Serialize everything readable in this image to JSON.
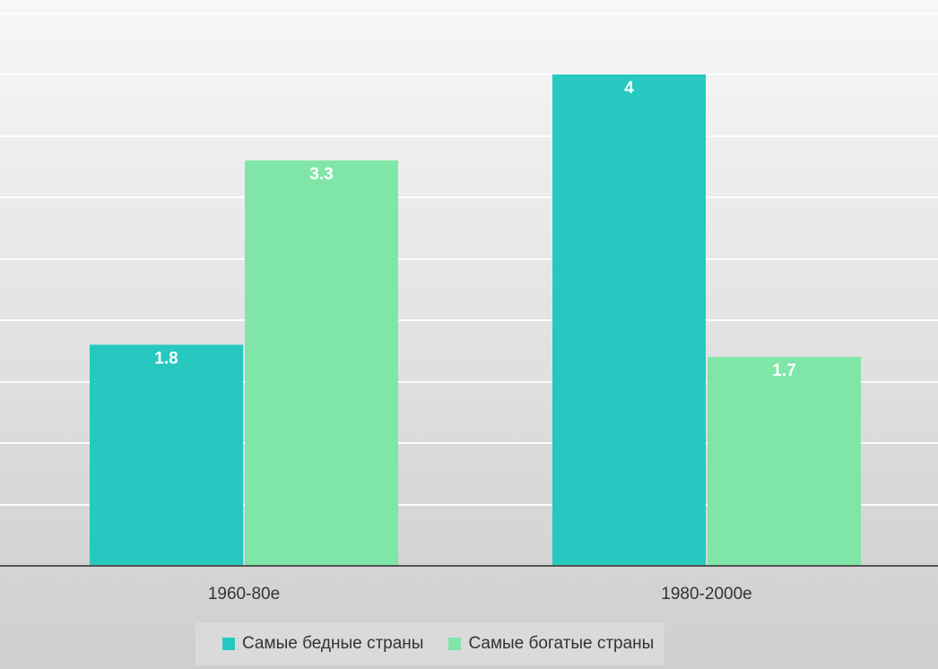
{
  "chart_data": {
    "type": "bar",
    "categories": [
      "1960-80е",
      "1980-2000е"
    ],
    "series": [
      {
        "name": "Самые бедные страны",
        "values": [
          1.8,
          4
        ],
        "labels": [
          "1.8",
          "4"
        ],
        "color": "#26c8c0"
      },
      {
        "name": "Самые богатые страны",
        "values": [
          3.3,
          1.7
        ],
        "labels": [
          "3.3",
          "1.7"
        ],
        "color": "#7fe6a7"
      }
    ],
    "ylim": [
      0,
      4.5
    ],
    "grid": true,
    "legend": "bottom",
    "colors": {
      "grid": "#ffffff",
      "axis": "#555555",
      "data_label": "#ffffff",
      "tick_label": "#333333"
    }
  }
}
